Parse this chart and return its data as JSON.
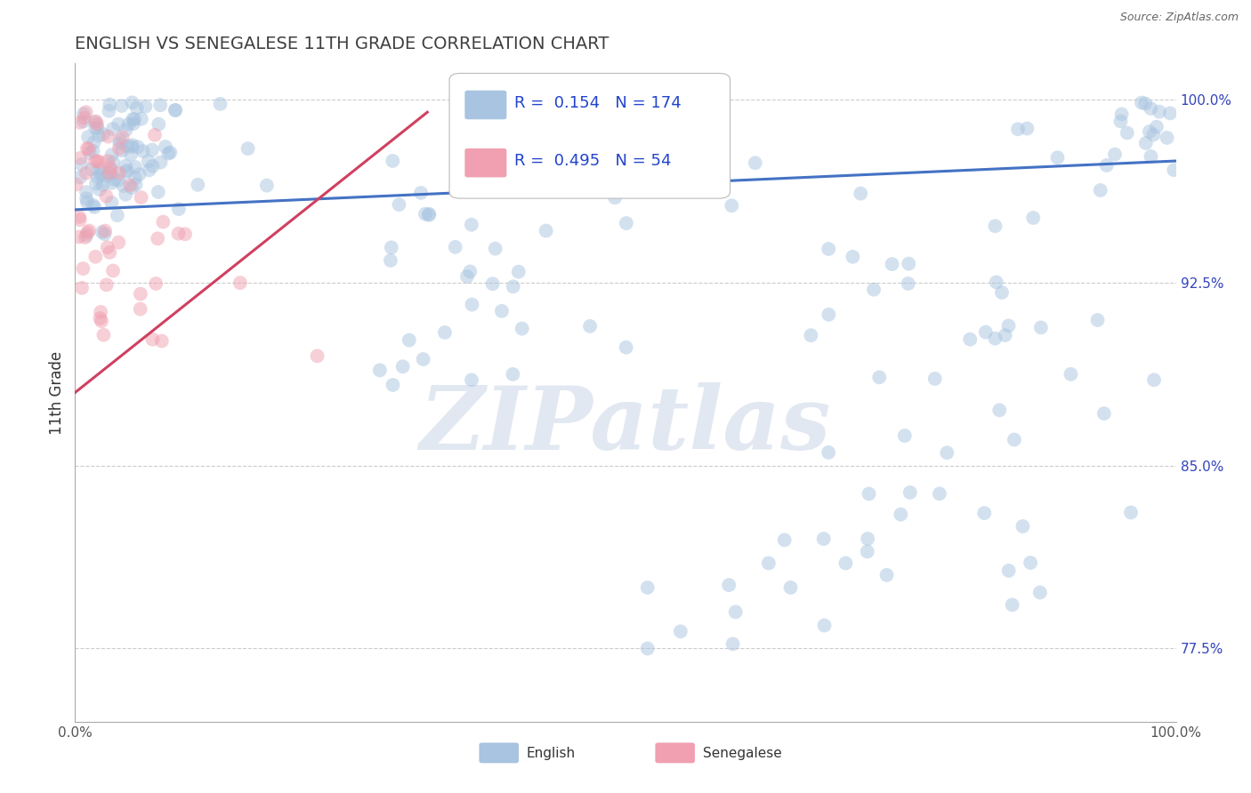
{
  "title": "ENGLISH VS SENEGALESE 11TH GRADE CORRELATION CHART",
  "source_text": "Source: ZipAtlas.com",
  "ylabel": "11th Grade",
  "x_min": 0.0,
  "x_max": 1.0,
  "y_min": 0.745,
  "y_max": 1.015,
  "y_ticks": [
    0.775,
    0.85,
    0.925,
    1.0
  ],
  "y_tick_labels": [
    "77.5%",
    "85.0%",
    "92.5%",
    "100.0%"
  ],
  "english_R": 0.154,
  "english_N": 174,
  "senegalese_R": 0.495,
  "senegalese_N": 54,
  "english_color": "#a8c4e0",
  "senegalese_color": "#f0a0b0",
  "english_line_color": "#4472c4",
  "senegalese_line_color": "#d04060",
  "legend_label_english": "English",
  "legend_label_senegalese": "Senegalese",
  "watermark_color": "#d0dae8",
  "background_color": "#ffffff",
  "grid_color": "#cccccc",
  "title_color": "#404040",
  "title_fontsize": 14,
  "marker_size": 130,
  "marker_alpha": 0.5,
  "english_line_start_x": 0.0,
  "english_line_start_y": 0.955,
  "english_line_end_x": 1.0,
  "english_line_end_y": 0.975,
  "senegalese_line_start_x": 0.0,
  "senegalese_line_start_y": 0.88,
  "senegalese_line_end_x": 0.32,
  "senegalese_line_end_y": 0.995
}
